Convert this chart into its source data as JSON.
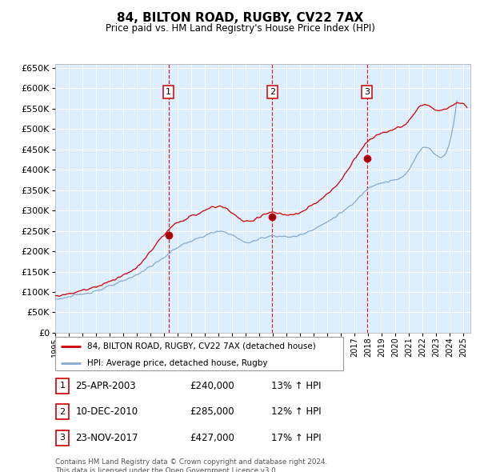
{
  "title": "84, BILTON ROAD, RUGBY, CV22 7AX",
  "subtitle": "Price paid vs. HM Land Registry's House Price Index (HPI)",
  "transactions": [
    {
      "num": 1,
      "date": "25-APR-2003",
      "year": 2003.32,
      "price": 240000,
      "hpi_pct": "13% ↑ HPI"
    },
    {
      "num": 2,
      "date": "10-DEC-2010",
      "year": 2010.94,
      "price": 285000,
      "hpi_pct": "12% ↑ HPI"
    },
    {
      "num": 3,
      "date": "23-NOV-2017",
      "year": 2017.9,
      "price": 427000,
      "hpi_pct": "17% ↑ HPI"
    }
  ],
  "legend_line1": "84, BILTON ROAD, RUGBY, CV22 7AX (detached house)",
  "legend_line2": "HPI: Average price, detached house, Rugby",
  "footer1": "Contains HM Land Registry data © Crown copyright and database right 2024.",
  "footer2": "This data is licensed under the Open Government Licence v3.0.",
  "red_color": "#cc0000",
  "blue_color": "#88aacc",
  "bg_color": "#ddeeff",
  "grid_color": "#ffffff",
  "ylim_min": 0,
  "ylim_max": 660000,
  "ytick_step": 50000,
  "xmin": 1995,
  "xmax": 2025.5,
  "hpi_anchor_years": [
    1995,
    1996,
    1997,
    1998,
    1999,
    2000,
    2001,
    2002,
    2003,
    2004,
    2005,
    2006,
    2007,
    2008,
    2009,
    2010,
    2011,
    2012,
    2013,
    2014,
    2015,
    2016,
    2017,
    2018,
    2019,
    2020,
    2021,
    2022,
    2023,
    2024
  ],
  "hpi_anchor_vals": [
    82000,
    88000,
    95000,
    103000,
    114000,
    127000,
    143000,
    163000,
    185000,
    210000,
    225000,
    238000,
    248000,
    240000,
    222000,
    230000,
    238000,
    235000,
    240000,
    255000,
    272000,
    295000,
    320000,
    355000,
    368000,
    375000,
    400000,
    455000,
    435000,
    470000
  ],
  "red_anchor_years": [
    1995,
    1996,
    1997,
    1998,
    1999,
    2000,
    2001,
    2002,
    2003,
    2004,
    2005,
    2006,
    2007,
    2008,
    2009,
    2010,
    2011,
    2012,
    2013,
    2014,
    2015,
    2016,
    2017,
    2018,
    2019,
    2020,
    2021,
    2022,
    2023,
    2024,
    2025
  ],
  "red_anchor_vals": [
    90000,
    96000,
    104000,
    113000,
    126000,
    142000,
    160000,
    200000,
    240000,
    270000,
    285000,
    300000,
    310000,
    295000,
    272000,
    285000,
    295000,
    288000,
    295000,
    315000,
    340000,
    375000,
    427000,
    470000,
    490000,
    500000,
    520000,
    560000,
    545000,
    555000,
    560000
  ]
}
